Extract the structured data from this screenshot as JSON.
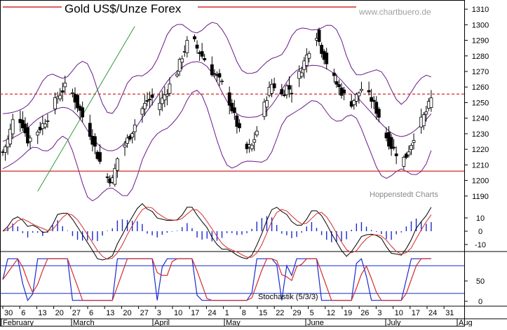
{
  "chart_data": {
    "type": "candlestick",
    "title": "Gold US$/Unze Forex",
    "watermark": "www.chartbuero.de",
    "credit": "Hoppenstedt Charts",
    "indicator_label": "Stochastik (5/3/3)",
    "price_axis": {
      "min": 1180,
      "max": 1315,
      "ticks": [
        1190,
        1200,
        1210,
        1220,
        1230,
        1240,
        1250,
        1260,
        1270,
        1280,
        1290,
        1300,
        1310
      ]
    },
    "macd_axis": {
      "ticks": [
        10,
        0,
        -10
      ]
    },
    "stoch_axis": {
      "ticks": [
        50,
        0
      ]
    },
    "date_ticks": [
      "30",
      "6",
      "13",
      "20",
      "27",
      "6",
      "13",
      "20",
      "27",
      "3",
      "10",
      "17",
      "24",
      "1",
      "8",
      "15",
      "22",
      "29",
      "5",
      "12",
      "19",
      "26",
      "3",
      "10",
      "17",
      "24",
      "31"
    ],
    "months": [
      "February",
      "March",
      "April",
      "May",
      "June",
      "July",
      "Aug"
    ],
    "horizontal_lines": [
      {
        "value": 1206,
        "style": "solid",
        "color": "#d42a2a"
      },
      {
        "value": 1255.5,
        "style": "dashed",
        "color": "#d42a2a"
      }
    ],
    "trendline": {
      "from": {
        "day": 14,
        "price": 1193
      },
      "to": {
        "day": 53,
        "price": 1299
      },
      "color": "#2f9a3a"
    },
    "close_series": [
      [
        0,
        1218
      ],
      [
        2,
        1226
      ],
      [
        4,
        1238
      ],
      [
        6,
        1242
      ],
      [
        8,
        1236
      ],
      [
        10,
        1226
      ],
      [
        12,
        1228
      ],
      [
        14,
        1232
      ],
      [
        16,
        1236
      ],
      [
        18,
        1241
      ],
      [
        20,
        1247
      ],
      [
        22,
        1254
      ],
      [
        24,
        1258
      ],
      [
        26,
        1262
      ],
      [
        28,
        1256
      ],
      [
        30,
        1248
      ],
      [
        32,
        1241
      ],
      [
        34,
        1235
      ],
      [
        36,
        1226
      ],
      [
        38,
        1216
      ],
      [
        40,
        1208
      ],
      [
        42,
        1202
      ],
      [
        44,
        1200
      ],
      [
        46,
        1214
      ],
      [
        48,
        1220
      ],
      [
        50,
        1226
      ],
      [
        52,
        1232
      ],
      [
        54,
        1240
      ],
      [
        56,
        1246
      ],
      [
        58,
        1251
      ],
      [
        60,
        1253
      ],
      [
        62,
        1248
      ],
      [
        64,
        1252
      ],
      [
        66,
        1258
      ],
      [
        68,
        1264
      ],
      [
        70,
        1270
      ],
      [
        72,
        1280
      ],
      [
        74,
        1288
      ],
      [
        76,
        1292
      ],
      [
        78,
        1285
      ],
      [
        80,
        1280
      ],
      [
        82,
        1276
      ],
      [
        84,
        1270
      ],
      [
        86,
        1266
      ],
      [
        88,
        1262
      ],
      [
        90,
        1255
      ],
      [
        92,
        1246
      ],
      [
        94,
        1236
      ],
      [
        96,
        1226
      ],
      [
        98,
        1220
      ],
      [
        100,
        1222
      ],
      [
        102,
        1232
      ],
      [
        104,
        1242
      ],
      [
        106,
        1254
      ],
      [
        108,
        1262
      ],
      [
        110,
        1260
      ],
      [
        112,
        1255
      ],
      [
        114,
        1260
      ],
      [
        116,
        1258
      ],
      [
        118,
        1264
      ],
      [
        120,
        1272
      ],
      [
        122,
        1280
      ],
      [
        124,
        1289
      ],
      [
        126,
        1294
      ],
      [
        128,
        1284
      ],
      [
        130,
        1276
      ],
      [
        132,
        1268
      ],
      [
        134,
        1262
      ],
      [
        136,
        1257
      ],
      [
        138,
        1252
      ],
      [
        140,
        1250
      ],
      [
        142,
        1254
      ],
      [
        144,
        1259
      ],
      [
        146,
        1256
      ],
      [
        148,
        1252
      ],
      [
        150,
        1245
      ],
      [
        152,
        1238
      ],
      [
        154,
        1228
      ],
      [
        156,
        1222
      ],
      [
        158,
        1218
      ],
      [
        160,
        1212
      ],
      [
        162,
        1216
      ],
      [
        164,
        1224
      ],
      [
        166,
        1233
      ],
      [
        168,
        1238
      ],
      [
        170,
        1244
      ],
      [
        172,
        1252
      ]
    ]
  }
}
